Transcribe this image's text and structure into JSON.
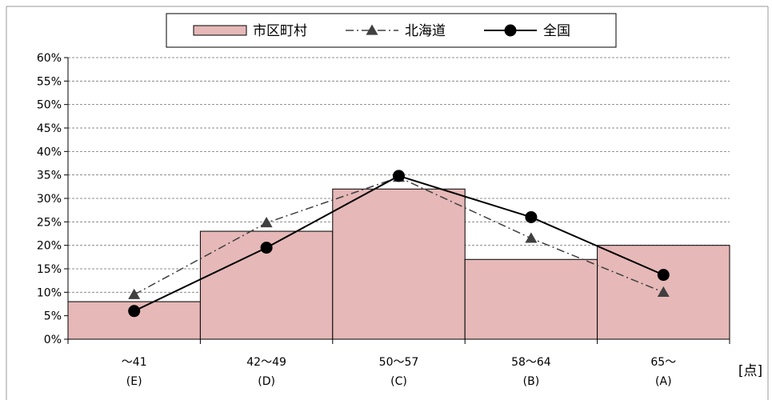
{
  "chart_data": {
    "type": "bar",
    "categories": [
      "〜41",
      "42〜49",
      "50〜57",
      "58〜64",
      "65〜"
    ],
    "category_sublabels": [
      "(E)",
      "(D)",
      "(C)",
      "(B)",
      "(A)"
    ],
    "ylim": [
      0,
      60
    ],
    "ytick_step": 5,
    "ytick_suffix": "%",
    "unit_label": "[点]",
    "grid": true,
    "legend_position": "top",
    "series": [
      {
        "name": "市区町村",
        "kind": "bar",
        "color": "#e6b8b8",
        "values": [
          8,
          23,
          32,
          17,
          20
        ]
      },
      {
        "name": "北海道",
        "kind": "line",
        "style": "dash-dot",
        "marker": "triangle",
        "color": "#404040",
        "values": [
          9.5,
          24.8,
          34.5,
          21.5,
          10
        ]
      },
      {
        "name": "全国",
        "kind": "line",
        "style": "solid",
        "marker": "circle",
        "color": "#000000",
        "values": [
          6,
          19.5,
          34.8,
          26,
          13.7
        ]
      }
    ]
  }
}
